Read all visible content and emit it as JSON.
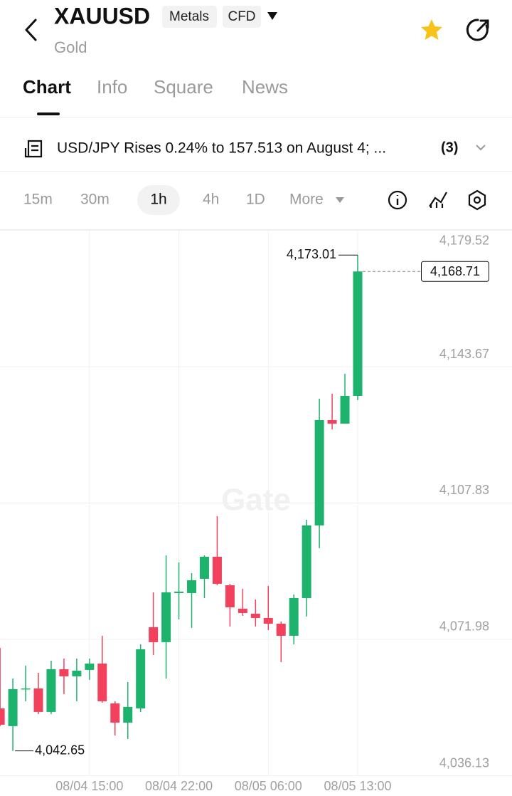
{
  "header": {
    "symbol": "XAUUSD",
    "tags": [
      "Metals",
      "CFD"
    ],
    "name": "Gold"
  },
  "tabs": [
    "Chart",
    "Info",
    "Square",
    "News"
  ],
  "news": {
    "headline": "USD/JPY Rises 0.24% to 157.513 on August 4; ...",
    "count": "(3)"
  },
  "intervals": [
    "15m",
    "30m",
    "1h",
    "4h",
    "1D",
    "More"
  ],
  "chart_data": {
    "type": "candlestick",
    "watermark": "Gate",
    "categories": [
      null,
      null,
      null,
      null,
      null,
      null,
      null,
      "08/04 15:00",
      null,
      null,
      null,
      null,
      null,
      null,
      "08/04 22:00",
      null,
      null,
      null,
      null,
      null,
      null,
      "08/05 06:00",
      null,
      null,
      null,
      null,
      null,
      null,
      "08/05 13:00"
    ],
    "open": [
      4053.83,
      4049.16,
      4058.89,
      4059.07,
      4052.9,
      4064.13,
      4062.26,
      4063.94,
      4065.62,
      4055.14,
      4050.09,
      4053.83,
      4075.17,
      4071.24,
      4084.15,
      4084.15,
      4087.9,
      4093.7,
      4086.21,
      4080.04,
      4078.73,
      4077.6,
      4076.1,
      4072.92,
      4082.84,
      4101.93,
      4129.63,
      4128.7,
      4136.0
    ],
    "high": [
      4069.74,
      4061.69,
      4065.06,
      4063.19,
      4066.37,
      4066.93,
      4066.93,
      4066.93,
      4072.92,
      4055.7,
      4060.76,
      4070.68,
      4084.34,
      4094.07,
      4092.2,
      4089.39,
      4094.07,
      4104.37,
      4086.59,
      4085.28,
      4082.47,
      4086.02,
      4076.67,
      4083.78,
      4103.43,
      4135.25,
      4136.56,
      4141.8,
      4173.01
    ],
    "low": [
      4049.16,
      4042.65,
      4055.7,
      4052.34,
      4052.34,
      4057.58,
      4055.7,
      4061.32,
      4055.33,
      4046.72,
      4045.78,
      4052.9,
      4067.87,
      4061.69,
      4077.23,
      4074.98,
      4082.84,
      4086.21,
      4075.36,
      4078.16,
      4075.36,
      4074.42,
      4066.0,
      4070.68,
      4077.98,
      4095.94,
      4127.2,
      4128.7,
      4134.87
    ],
    "close": [
      4049.53,
      4058.89,
      4059.07,
      4052.9,
      4064.13,
      4062.26,
      4063.75,
      4065.62,
      4055.7,
      4050.09,
      4054.21,
      4069.37,
      4071.24,
      4084.34,
      4084.53,
      4087.52,
      4093.7,
      4086.59,
      4080.41,
      4078.91,
      4077.6,
      4076.1,
      4072.92,
      4082.84,
      4101.93,
      4129.63,
      4128.7,
      4136.0,
      4168.71
    ],
    "up_color": "#1eb36d",
    "down_color": "#f2415c",
    "max_label": "4,173.01",
    "min_label": "4,042.65",
    "last_label": "4,168.71",
    "ylim": [
      4036.13,
      4179.52
    ],
    "yticks": [
      {
        "value": 4179.52,
        "label": "4,179.52"
      },
      {
        "value": 4143.67,
        "label": "4,143.67"
      },
      {
        "value": 4107.83,
        "label": "4,107.83"
      },
      {
        "value": 4071.98,
        "label": "4,071.98"
      },
      {
        "value": 4036.13,
        "label": "4,036.13"
      }
    ],
    "grid": true
  }
}
